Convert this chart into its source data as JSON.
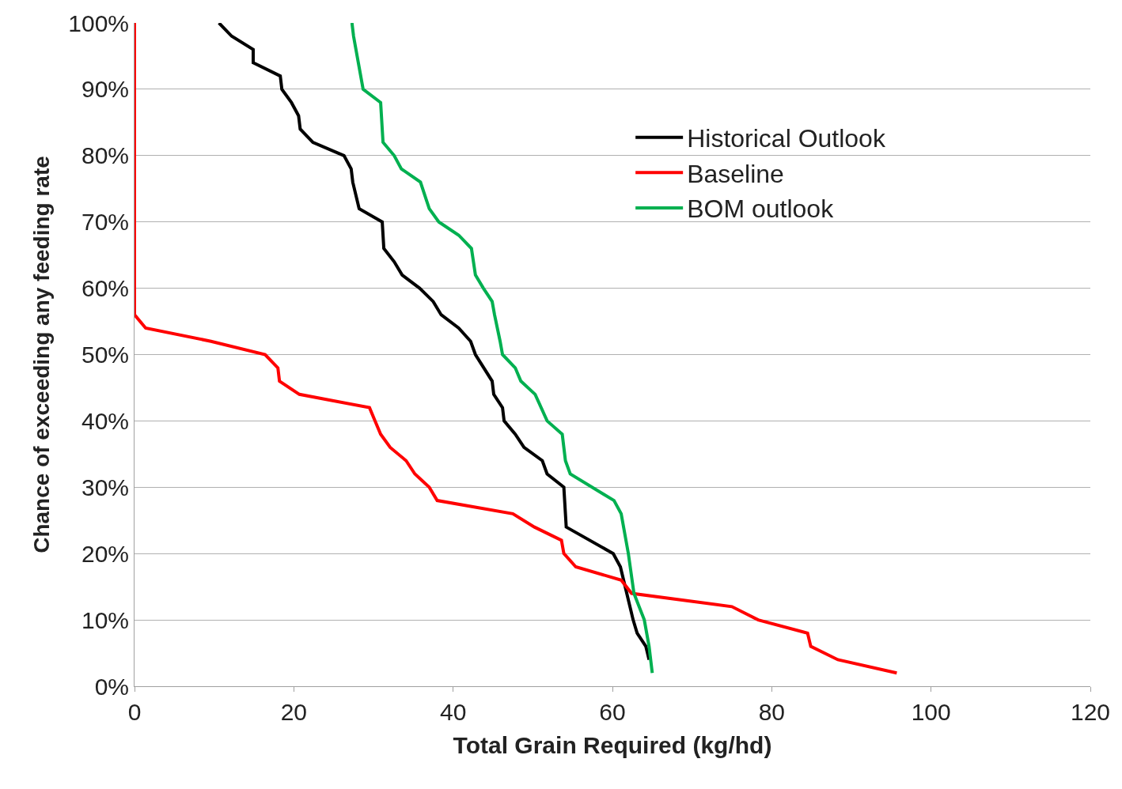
{
  "chart_data": {
    "type": "line",
    "xlabel": "Total Grain Required (kg/hd)",
    "ylabel": "Chance of exceeding any feeding rate",
    "xlim": [
      0,
      120
    ],
    "xticks": [
      0,
      20,
      40,
      60,
      80,
      100,
      120
    ],
    "ylim": [
      0,
      100
    ],
    "yticks": [
      {
        "value": 0,
        "label": "0%"
      },
      {
        "value": 10,
        "label": "10%"
      },
      {
        "value": 20,
        "label": "20%"
      },
      {
        "value": 30,
        "label": "30%"
      },
      {
        "value": 40,
        "label": "40%"
      },
      {
        "value": 50,
        "label": "50%"
      },
      {
        "value": 60,
        "label": "60%"
      },
      {
        "value": 70,
        "label": "70%"
      },
      {
        "value": 80,
        "label": "80%"
      },
      {
        "value": 90,
        "label": "90%"
      },
      {
        "value": 100,
        "label": "100%"
      }
    ],
    "grid": "y",
    "legend": "top right",
    "marker": "none",
    "line_style": "solid",
    "series": [
      {
        "name": "Historical Outlook",
        "color": "#000000",
        "x": [
          10.6,
          12.2,
          14.9,
          14.9,
          18.3,
          18.5,
          19.7,
          20.6,
          20.8,
          22.4,
          26.3,
          27.2,
          27.4,
          28.2,
          31.1,
          31.3,
          32.6,
          33.6,
          35.8,
          37.5,
          38.5,
          40.7,
          42.2,
          42.8,
          44.9,
          45.1,
          46.2,
          46.4,
          47.8,
          48.9,
          51.2,
          51.8,
          53.9,
          54.2,
          60.1,
          61.0,
          61.8,
          62.6,
          63.1,
          64.2,
          64.6
        ],
        "values": [
          100,
          98,
          96,
          94,
          92,
          90,
          88,
          86,
          84,
          82,
          80,
          78,
          76,
          72,
          70,
          66,
          64,
          62,
          60,
          58,
          56,
          54,
          52,
          50,
          46,
          44,
          42,
          40,
          38,
          36,
          34,
          32,
          30,
          24,
          20,
          18,
          14,
          10,
          8,
          6,
          4
        ]
      },
      {
        "name": "Baseline",
        "color": "#ff0000",
        "x": [
          0,
          0,
          1.4,
          9.6,
          16.4,
          18.0,
          18.2,
          20.7,
          29.5,
          30.2,
          30.9,
          32.1,
          34.1,
          35.2,
          37.0,
          38.0,
          47.5,
          50.2,
          53.6,
          53.9,
          55.4,
          61.1,
          62.4,
          75,
          78.3,
          84.5,
          84.9,
          88.3,
          95.7
        ],
        "values": [
          100,
          56,
          54,
          52,
          50,
          48,
          46,
          44,
          42,
          40,
          38,
          36,
          34,
          32,
          30,
          28,
          26,
          24,
          22,
          20,
          18,
          16,
          14,
          12,
          10,
          8,
          6,
          4,
          2
        ]
      },
      {
        "name": "BOM outlook",
        "color": "#00b050",
        "x": [
          27.3,
          27.5,
          28.1,
          28.7,
          30.9,
          31.2,
          32.6,
          33.5,
          35.9,
          37.0,
          38.2,
          40.7,
          42.3,
          42.8,
          43.8,
          44.9,
          45.2,
          45.9,
          46.2,
          47.8,
          48.5,
          50.3,
          51.8,
          53.7,
          54.1,
          54.7,
          60.2,
          61.1,
          62.0,
          62.7,
          64.0,
          64.6,
          65.0
        ],
        "values": [
          100,
          98,
          94,
          90,
          88,
          82,
          80,
          78,
          76,
          72,
          70,
          68,
          66,
          62,
          60,
          58,
          56,
          52,
          50,
          48,
          46,
          44,
          40,
          38,
          34,
          32,
          28,
          26,
          20,
          14,
          10,
          6,
          2
        ]
      }
    ]
  }
}
